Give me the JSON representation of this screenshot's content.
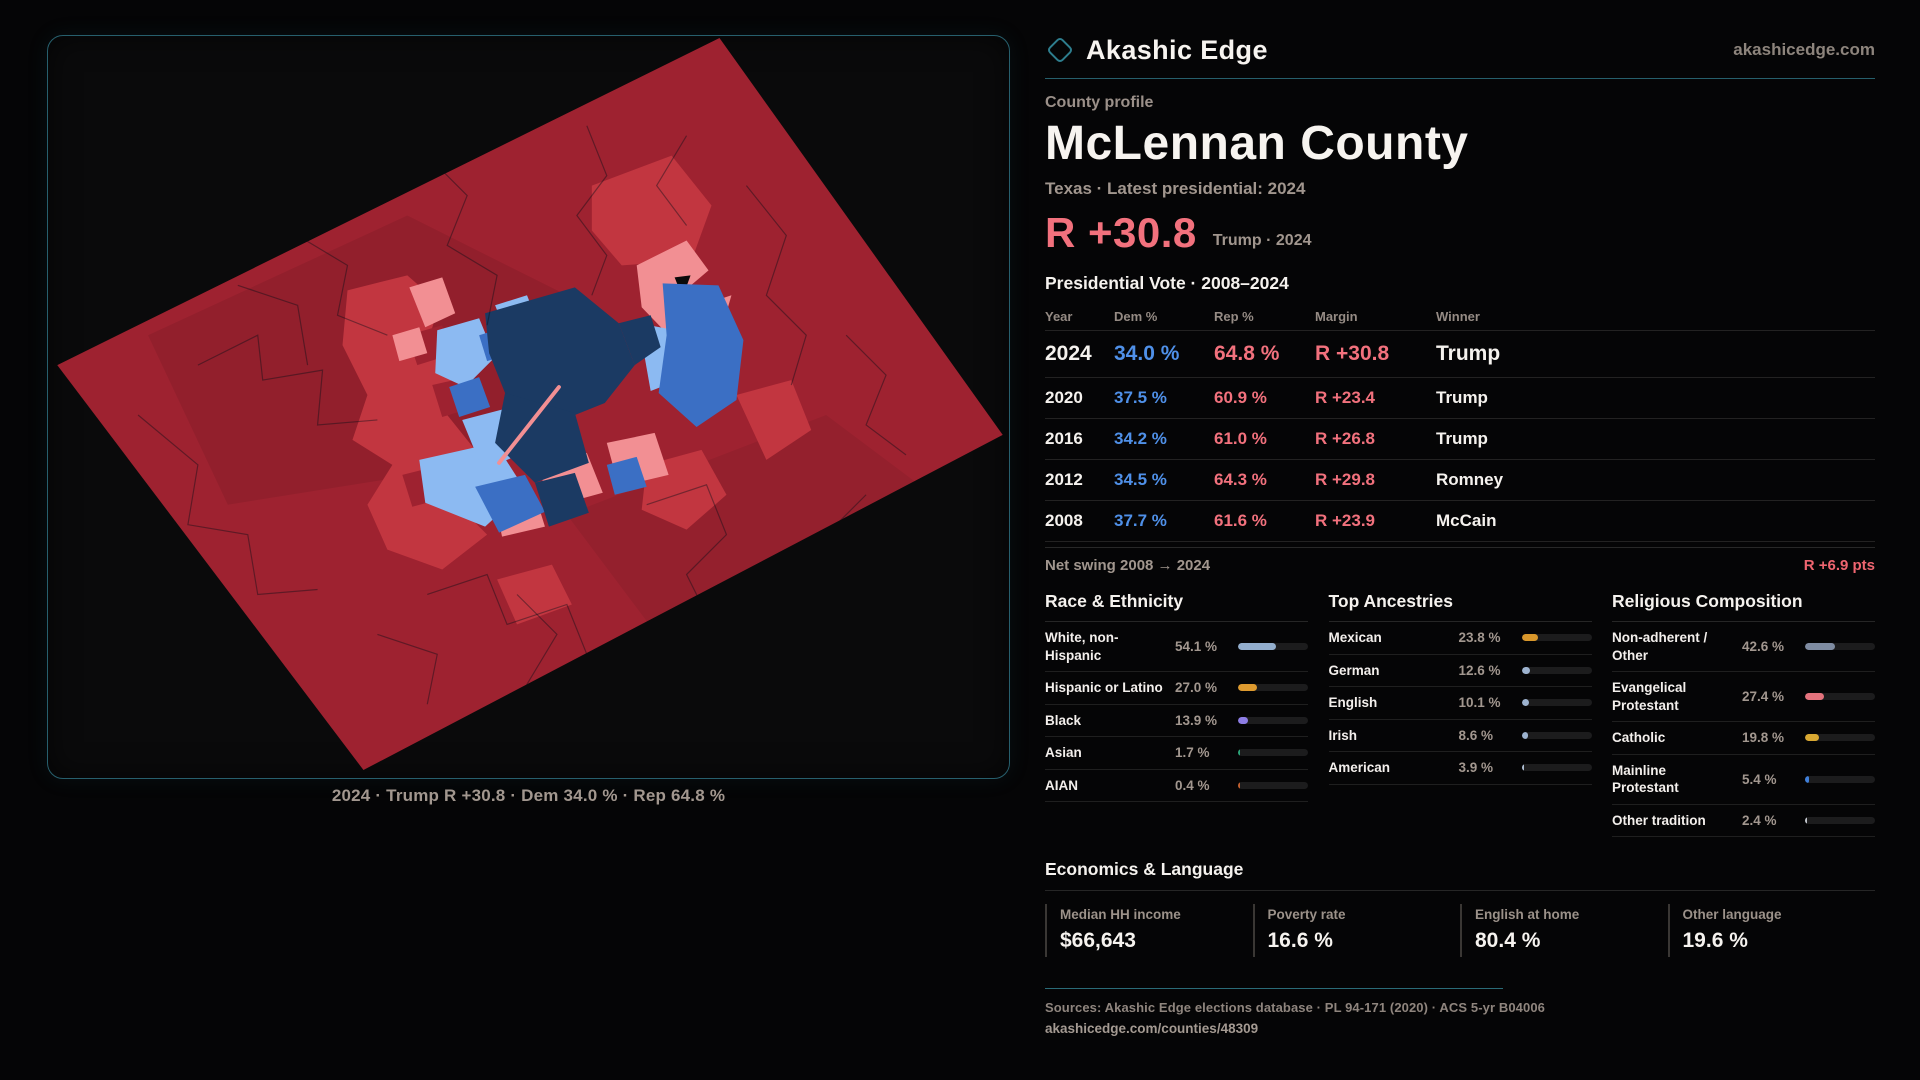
{
  "brand": {
    "name": "Akashic Edge",
    "domain": "akashicedge.com",
    "logo_icon": "diamond-outline",
    "accent_teal": "#2e7e8e"
  },
  "profile": {
    "kicker": "County profile",
    "title": "McLennan County",
    "subtitle": "Texas · Latest presidential: 2024",
    "headline_margin": "R +30.8",
    "headline_context": "Trump · 2024"
  },
  "vote_table": {
    "title": "Presidential Vote · 2008–2024",
    "columns": [
      "Year",
      "Dem %",
      "Rep %",
      "Margin",
      "Winner"
    ],
    "rows": [
      {
        "year": "2024",
        "dem": "34.0 %",
        "rep": "64.8 %",
        "margin": "R +30.8",
        "winner": "Trump"
      },
      {
        "year": "2020",
        "dem": "37.5 %",
        "rep": "60.9 %",
        "margin": "R +23.4",
        "winner": "Trump"
      },
      {
        "year": "2016",
        "dem": "34.2 %",
        "rep": "61.0 %",
        "margin": "R +26.8",
        "winner": "Trump"
      },
      {
        "year": "2012",
        "dem": "34.5 %",
        "rep": "64.3 %",
        "margin": "R +29.8",
        "winner": "Romney"
      },
      {
        "year": "2008",
        "dem": "37.7 %",
        "rep": "61.6 %",
        "margin": "R +23.9",
        "winner": "McCain"
      }
    ],
    "net_swing_label": "Net swing 2008 → 2024",
    "net_swing_value": "R +6.9 pts"
  },
  "chart_data": [
    {
      "type": "bar",
      "title": "Race & Ethnicity",
      "categories": [
        "White, non-Hispanic",
        "Hispanic or Latino",
        "Black",
        "Asian",
        "AIAN"
      ],
      "values": [
        54.1,
        27.0,
        13.9,
        1.7,
        0.4
      ],
      "unit": "%",
      "xlim": [
        0,
        100
      ]
    },
    {
      "type": "bar",
      "title": "Top Ancestries",
      "categories": [
        "Mexican",
        "German",
        "English",
        "Irish",
        "American"
      ],
      "values": [
        23.8,
        12.6,
        10.1,
        8.6,
        3.9
      ],
      "unit": "%",
      "xlim": [
        0,
        100
      ]
    },
    {
      "type": "bar",
      "title": "Religious Composition",
      "categories": [
        "Non-adherent / Other",
        "Evangelical Protestant",
        "Catholic",
        "Mainline Protestant",
        "Other tradition"
      ],
      "values": [
        42.6,
        27.4,
        19.8,
        5.4,
        2.4
      ],
      "unit": "%",
      "xlim": [
        0,
        100
      ]
    }
  ],
  "demographics": {
    "race": {
      "title": "Race & Ethnicity",
      "rows": [
        {
          "label": "White, non-Hispanic",
          "value": "54.1 %",
          "pct": 54.1,
          "color": "#93aecd"
        },
        {
          "label": "Hispanic or Latino",
          "value": "27.0 %",
          "pct": 27.0,
          "color": "#dd9a2f"
        },
        {
          "label": "Black",
          "value": "13.9 %",
          "pct": 13.9,
          "color": "#8d7de5"
        },
        {
          "label": "Asian",
          "value": "1.7 %",
          "pct": 1.7,
          "color": "#2ba378"
        },
        {
          "label": "AIAN",
          "value": "0.4 %",
          "pct": 0.4,
          "color": "#c05f2e"
        }
      ]
    },
    "ancestries": {
      "title": "Top Ancestries",
      "rows": [
        {
          "label": "Mexican",
          "value": "23.8 %",
          "pct": 23.8,
          "color": "#d9972b"
        },
        {
          "label": "German",
          "value": "12.6 %",
          "pct": 12.6,
          "color": "#9db3cf"
        },
        {
          "label": "English",
          "value": "10.1 %",
          "pct": 10.1,
          "color": "#9db3cf"
        },
        {
          "label": "Irish",
          "value": "8.6 %",
          "pct": 8.6,
          "color": "#9db3cf"
        },
        {
          "label": "American",
          "value": "3.9 %",
          "pct": 3.9,
          "color": "#aebdd2"
        }
      ]
    },
    "religion": {
      "title": "Religious Composition",
      "rows": [
        {
          "label": "Non-adherent / Other",
          "value": "42.6 %",
          "pct": 42.6,
          "color": "#7f8ca2"
        },
        {
          "label": "Evangelical Protestant",
          "value": "27.4 %",
          "pct": 27.4,
          "color": "#e4737d"
        },
        {
          "label": "Catholic",
          "value": "19.8 %",
          "pct": 19.8,
          "color": "#d9a832"
        },
        {
          "label": "Mainline Protestant",
          "value": "5.4 %",
          "pct": 5.4,
          "color": "#3f7fd9"
        },
        {
          "label": "Other tradition",
          "value": "2.4 %",
          "pct": 2.4,
          "color": "#c2c6cc"
        }
      ]
    }
  },
  "economics": {
    "title": "Economics & Language",
    "stats": [
      {
        "label": "Median HH income",
        "value": "$66,643"
      },
      {
        "label": "Poverty rate",
        "value": "16.6 %"
      },
      {
        "label": "English at home",
        "value": "80.4 %"
      },
      {
        "label": "Other language",
        "value": "19.6 %"
      }
    ]
  },
  "map": {
    "caption": "2024 · Trump R +30.8 · Dem 34.0 % · Rep 64.8 %",
    "palette": {
      "rep_dark": "#9e2230",
      "rep_bright": "#c23640",
      "rep_light": "#f28f93",
      "dem_light": "#8cbaf2",
      "dem_mid": "#3b6fc4",
      "dem_dark": "#1b3a63",
      "no_data": "#0a0a0a"
    }
  },
  "footer": {
    "sources": "Sources: Akashic Edge elections database · PL 94-171 (2020) · ACS 5-yr B04006",
    "permalink": "akashicedge.com/counties/48309"
  }
}
